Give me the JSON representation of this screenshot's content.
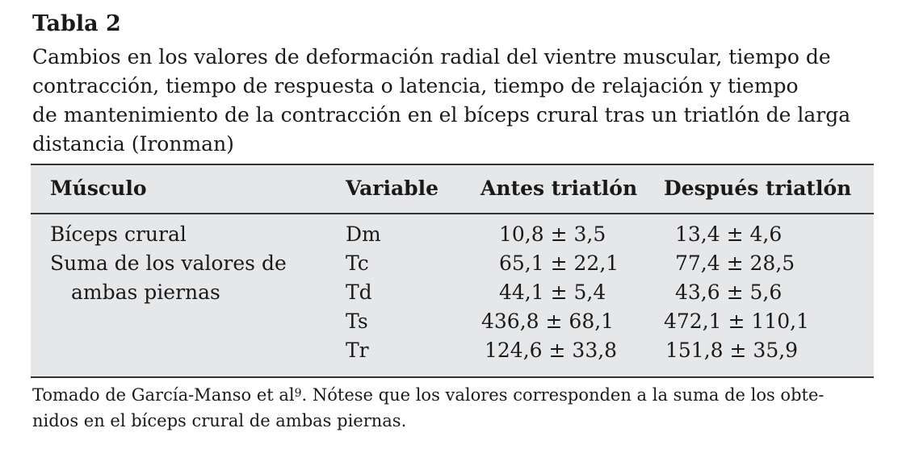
{
  "table_label": "Tabla 2",
  "caption_lines": [
    "Cambios en los valores de deformación radial del vientre muscular, tiempo de",
    "contracción, tiempo de respuesta o latencia, tiempo de relajación y tiempo",
    "de mantenimiento de la contracción en el bíceps crural tras un triatlón de larga",
    "distancia (Ironman)"
  ],
  "headers": {
    "musculo": "Músculo",
    "variable": "Variable",
    "antes": "Antes triatlón",
    "despues": "Después triatlón"
  },
  "muscle_lines": [
    "Bíceps crural",
    "Suma de los valores de",
    "ambas piernas"
  ],
  "rows": [
    {
      "variable": "Dm",
      "antes": "10,8 ± 3,5",
      "despues": "13,4 ± 4,6"
    },
    {
      "variable": "Tc",
      "antes": "65,1 ± 22,1",
      "despues": "77,4 ± 28,5"
    },
    {
      "variable": "Td",
      "antes": "44,1 ± 5,4",
      "despues": "43,6 ± 5,6"
    },
    {
      "variable": "Ts",
      "antes": "436,8 ± 68,1",
      "despues": "472,1 ± 110,1"
    },
    {
      "variable": "Tr",
      "antes": "124,6 ± 33,8",
      "despues": "151,8 ± 35,9"
    }
  ],
  "footnote": {
    "part1": "Tomado de García-Manso et al",
    "sup": "9",
    "part2": ". Nótese que los valores corresponden a la suma de los obte-",
    "line2": "nidos en el bíceps crural de ambas piernas."
  }
}
